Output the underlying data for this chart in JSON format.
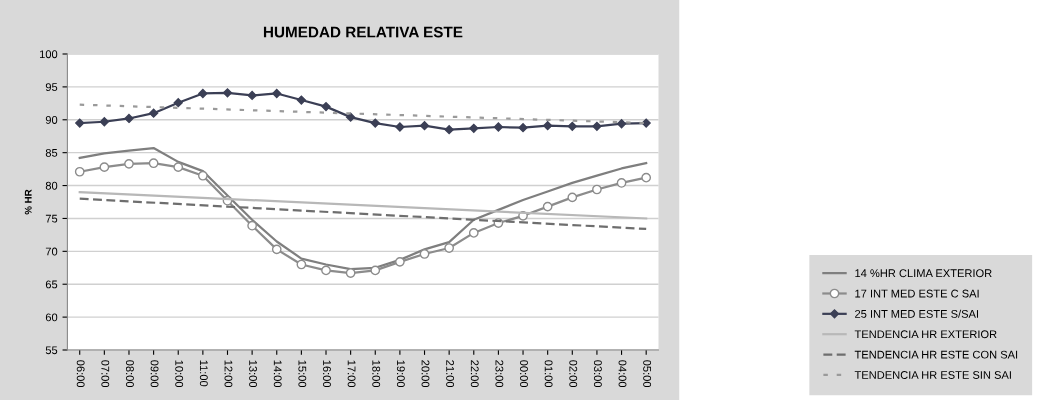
{
  "chart_data": {
    "type": "line",
    "title": "HUMEDAD RELATIVA ESTE",
    "ylabel": "% HR",
    "categories": [
      "06:00",
      "07:00",
      "08:00",
      "09:00",
      "10:00",
      "11:00",
      "12:00",
      "13:00",
      "14:00",
      "15:00",
      "16:00",
      "17:00",
      "18:00",
      "19:00",
      "20:00",
      "21:00",
      "22:00",
      "23:00",
      "00:00",
      "01:00",
      "02:00",
      "03:00",
      "04:00",
      "05:00"
    ],
    "series": [
      {
        "name": "14 %HR CLIMA EXTERIOR",
        "color": "#7f7f7f",
        "marker": "none",
        "line_style": "solid",
        "values": [
          84.2,
          84.9,
          85.3,
          85.7,
          83.6,
          82.2,
          78.5,
          74.8,
          71.5,
          68.9,
          68.0,
          67.3,
          67.5,
          68.7,
          70.3,
          71.4,
          74.8,
          76.3,
          77.8,
          79.1,
          80.4,
          81.5,
          82.6,
          83.4
        ]
      },
      {
        "name": "17 INT MED ESTE C SAI",
        "color": "#8c8c8c",
        "marker": "circle",
        "line_style": "solid",
        "values": [
          82.1,
          82.8,
          83.3,
          83.4,
          82.8,
          81.5,
          77.7,
          73.9,
          70.3,
          68.0,
          67.1,
          66.7,
          67.1,
          68.4,
          69.6,
          70.5,
          72.8,
          74.3,
          75.4,
          76.8,
          78.2,
          79.4,
          80.4,
          81.2
        ]
      },
      {
        "name": "25 INT MED ESTE S/SAI",
        "color": "#3b3f55",
        "marker": "diamond",
        "line_style": "solid",
        "values": [
          89.5,
          89.7,
          90.2,
          91.0,
          92.6,
          94.0,
          94.1,
          93.7,
          94.0,
          93.0,
          92.0,
          90.4,
          89.5,
          88.9,
          89.1,
          88.5,
          88.7,
          88.9,
          88.8,
          89.1,
          89.0,
          89.0,
          89.4,
          89.5
        ]
      },
      {
        "name": "TENDENCIA HR EXTERIOR",
        "color": "#b8b8b8",
        "marker": "none",
        "line_style": "solid",
        "x": [
          "06:00",
          "05:00"
        ],
        "values": [
          79.0,
          75.0
        ]
      },
      {
        "name": "TENDENCIA HR ESTE CON SAI",
        "color": "#6e6e6e",
        "marker": "none",
        "line_style": "dashed",
        "x": [
          "06:00",
          "05:00"
        ],
        "values": [
          78.0,
          73.4
        ]
      },
      {
        "name": "TENDENCIA HR ESTE SIN SAI",
        "color": "#9a9a9a",
        "marker": "none",
        "line_style": "dotted",
        "x": [
          "06:00",
          "05:00"
        ],
        "values": [
          92.3,
          89.5
        ]
      }
    ],
    "ylim": [
      55,
      100
    ],
    "yticks": [
      55,
      60,
      65,
      70,
      75,
      80,
      85,
      90,
      95,
      100
    ],
    "grid": "y",
    "legend": "right"
  }
}
